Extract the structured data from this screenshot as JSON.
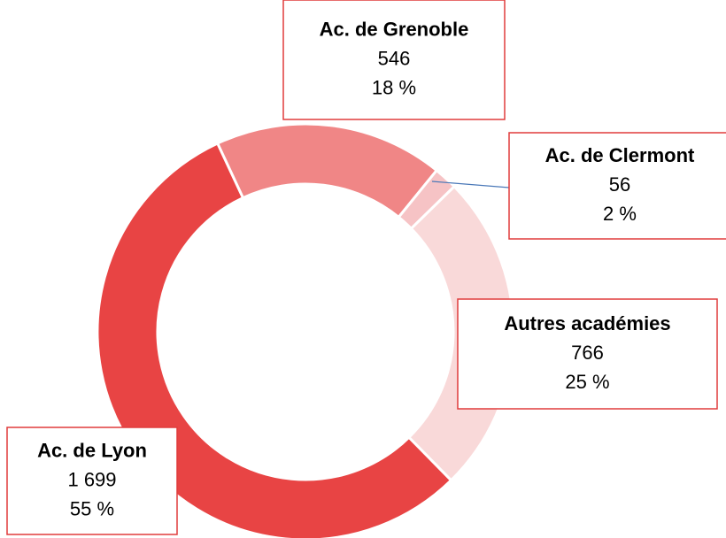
{
  "chart_data": {
    "type": "donut",
    "categories": [
      "Ac. de Grenoble",
      "Ac. de Clermont",
      "Autres académies",
      "Ac. de Lyon"
    ],
    "values": [
      546,
      56,
      766,
      1699
    ],
    "value_labels": [
      "546",
      "56",
      "766",
      "1 699"
    ],
    "percent_labels": [
      "18 %",
      "2 %",
      "25 %",
      "55 %"
    ],
    "colors": [
      "#f08686",
      "#f6c3c5",
      "#f9d9d9",
      "#e84444"
    ]
  }
}
